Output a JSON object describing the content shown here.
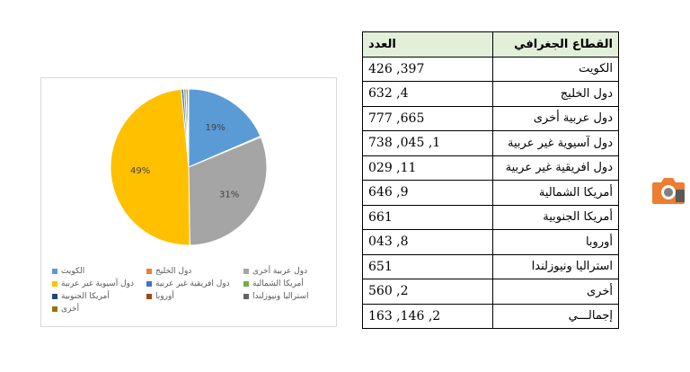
{
  "colors": {
    "kuwait": "#5b9bd5",
    "gulf": "#ed7d31",
    "other_arab": "#a5a5a5",
    "asian": "#ffc000",
    "african": "#4472c4",
    "north_america": "#70ad47",
    "south_america": "#264478",
    "europe": "#9e480e",
    "australia": "#636363",
    "other": "#997300",
    "table_header_bg": "#e2efd9",
    "logo": "#ed7d31"
  },
  "table": {
    "headers": {
      "region": "القطاع الجغرافي",
      "count": "العدد"
    },
    "rows": [
      {
        "region": "الكويت",
        "count": "397, 426"
      },
      {
        "region": "دول الخليج",
        "count": "4, 632"
      },
      {
        "region": "دول عربية أخرى",
        "count": "665, 777"
      },
      {
        "region": "دول آسيوية غير عربية",
        "count": "1, 045, 738"
      },
      {
        "region": "دول افريقية غير عربية",
        "count": "11, 029"
      },
      {
        "region": "أمريكا الشمالية",
        "count": "9, 646"
      },
      {
        "region": "أمريكا الجنوبية",
        "count": "661"
      },
      {
        "region": "أوروبا",
        "count": "8, 043"
      },
      {
        "region": "استراليا ونيوزلندا",
        "count": "651"
      },
      {
        "region": "أخرى",
        "count": "2, 560"
      },
      {
        "region": "إجمالـــي",
        "count": "2, 146, 163"
      }
    ]
  },
  "chart_data": {
    "type": "pie",
    "categories": [
      "الكويت",
      "دول الخليج",
      "دول عربية أخرى",
      "دول آسيوية غير عربية",
      "دول افريقية غير عربية",
      "أمريكا الشمالية",
      "أمريكا الجنوبية",
      "أوروبا",
      "استراليا ونيوزلندا",
      "أخرى"
    ],
    "values": [
      397426,
      4632,
      665777,
      1045738,
      11029,
      9646,
      661,
      8043,
      651,
      2560
    ],
    "data_labels": [
      "19%",
      "",
      "31%",
      "49%",
      "",
      "",
      "",
      "",
      "",
      ""
    ],
    "colors": [
      "#5b9bd5",
      "#ed7d31",
      "#a5a5a5",
      "#ffc000",
      "#4472c4",
      "#70ad47",
      "#264478",
      "#9e480e",
      "#636363",
      "#997300"
    ],
    "legend_placement": "bottom"
  },
  "logo_icon": "camera-logo-icon"
}
